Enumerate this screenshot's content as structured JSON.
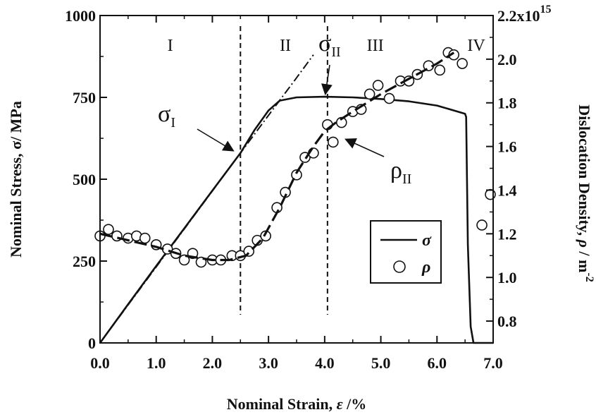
{
  "chart_data": {
    "type": "line",
    "xlabel": {
      "text": "Nominal Strain, ",
      "sym": "ε",
      "unit": " /%"
    },
    "ylabel_left": "Nominal Stress, σ/ MPa",
    "ylabel_right": {
      "text": "Dislocation Density, ",
      "sym": "ρ",
      "unit": " / m",
      "exp": "-2"
    },
    "xlim": [
      0,
      7.0
    ],
    "ylim_left": [
      0,
      1000
    ],
    "ylim_right": [
      0.7,
      2.2
    ],
    "right_scale": "x10^15",
    "x_ticks": [
      "0.0",
      "1.0",
      "2.0",
      "3.0",
      "4.0",
      "5.0",
      "6.0",
      "7.0"
    ],
    "x_tick_values": [
      0,
      1,
      2,
      3,
      4,
      5,
      6,
      7
    ],
    "y_left_ticks": [
      "0",
      "250",
      "500",
      "750",
      "1000"
    ],
    "y_left_tick_values": [
      0,
      250,
      500,
      750,
      1000
    ],
    "y_right_ticks": [
      "0.8",
      "1.0",
      "1.2",
      "1.4",
      "1.6",
      "1.8",
      "2.0",
      "2.2x10"
    ],
    "y_right_tick_values": [
      0.8,
      1.0,
      1.2,
      1.4,
      1.6,
      1.8,
      2.0,
      2.2
    ],
    "y_right_top_exp": "15",
    "regions": [
      {
        "label": "I",
        "x": 1.25
      },
      {
        "label": "II",
        "x": 3.3
      },
      {
        "label": "III",
        "x": 4.9
      },
      {
        "label": "IV",
        "x": 6.7
      }
    ],
    "region_boundaries": [
      2.5,
      4.05
    ],
    "series": [
      {
        "name": "σ",
        "axis": "left",
        "style": "solid",
        "x": [
          0,
          0.5,
          1.0,
          1.5,
          2.0,
          2.5,
          2.75,
          3.0,
          3.2,
          3.5,
          4.0,
          4.5,
          5.0,
          5.5,
          6.0,
          6.5,
          6.52,
          6.55,
          6.6,
          6.65,
          7.0
        ],
        "y": [
          0,
          118,
          235,
          350,
          465,
          580,
          650,
          710,
          740,
          750,
          752,
          750,
          745,
          738,
          725,
          700,
          690,
          300,
          50,
          0,
          0
        ]
      },
      {
        "name": "",
        "axis": "left",
        "style": "dashdot",
        "x": [
          0,
          2.5,
          3.0,
          3.5,
          3.8
        ],
        "y": [
          0,
          580,
          695,
          810,
          880
        ]
      },
      {
        "name": "ρ",
        "axis": "right",
        "style": "markers",
        "x": [
          0.0,
          0.15,
          0.3,
          0.5,
          0.65,
          0.8,
          1.0,
          1.2,
          1.35,
          1.5,
          1.65,
          1.8,
          2.0,
          2.15,
          2.35,
          2.5,
          2.65,
          2.8,
          2.95,
          3.15,
          3.3,
          3.5,
          3.65,
          3.8,
          4.05,
          4.15,
          4.3,
          4.5,
          4.65,
          4.8,
          4.95,
          5.15,
          5.35,
          5.5,
          5.65,
          5.85,
          6.05,
          6.2,
          6.3,
          6.45,
          6.8,
          6.95
        ],
        "y": [
          1.19,
          1.22,
          1.19,
          1.18,
          1.19,
          1.18,
          1.15,
          1.13,
          1.11,
          1.08,
          1.11,
          1.07,
          1.08,
          1.08,
          1.1,
          1.1,
          1.12,
          1.17,
          1.19,
          1.32,
          1.39,
          1.47,
          1.55,
          1.57,
          1.7,
          1.62,
          1.71,
          1.76,
          1.77,
          1.84,
          1.88,
          1.82,
          1.9,
          1.9,
          1.93,
          1.97,
          1.95,
          2.03,
          2.02,
          1.98,
          1.24,
          1.38
        ]
      },
      {
        "name": "",
        "axis": "right",
        "style": "longdash",
        "x": [
          0.0,
          0.5,
          1.0,
          1.5,
          2.0,
          2.3,
          2.6,
          2.9,
          3.2,
          3.5,
          3.8,
          4.0,
          4.2,
          4.5,
          5.0,
          5.5,
          6.0,
          6.3
        ],
        "y": [
          1.2,
          1.17,
          1.14,
          1.1,
          1.08,
          1.08,
          1.1,
          1.18,
          1.32,
          1.48,
          1.6,
          1.67,
          1.71,
          1.76,
          1.84,
          1.91,
          1.98,
          2.03
        ]
      }
    ],
    "annotations": [
      {
        "main": "σ",
        "sub": "I"
      },
      {
        "main": "σ",
        "sub": "II"
      },
      {
        "main": "ρ",
        "sub": "II"
      }
    ],
    "legend": {
      "position": "lower-right",
      "entries": [
        {
          "label": "σ",
          "style": "solid-line"
        },
        {
          "label": "ρ",
          "style": "open-circle"
        }
      ]
    },
    "grid": false
  }
}
